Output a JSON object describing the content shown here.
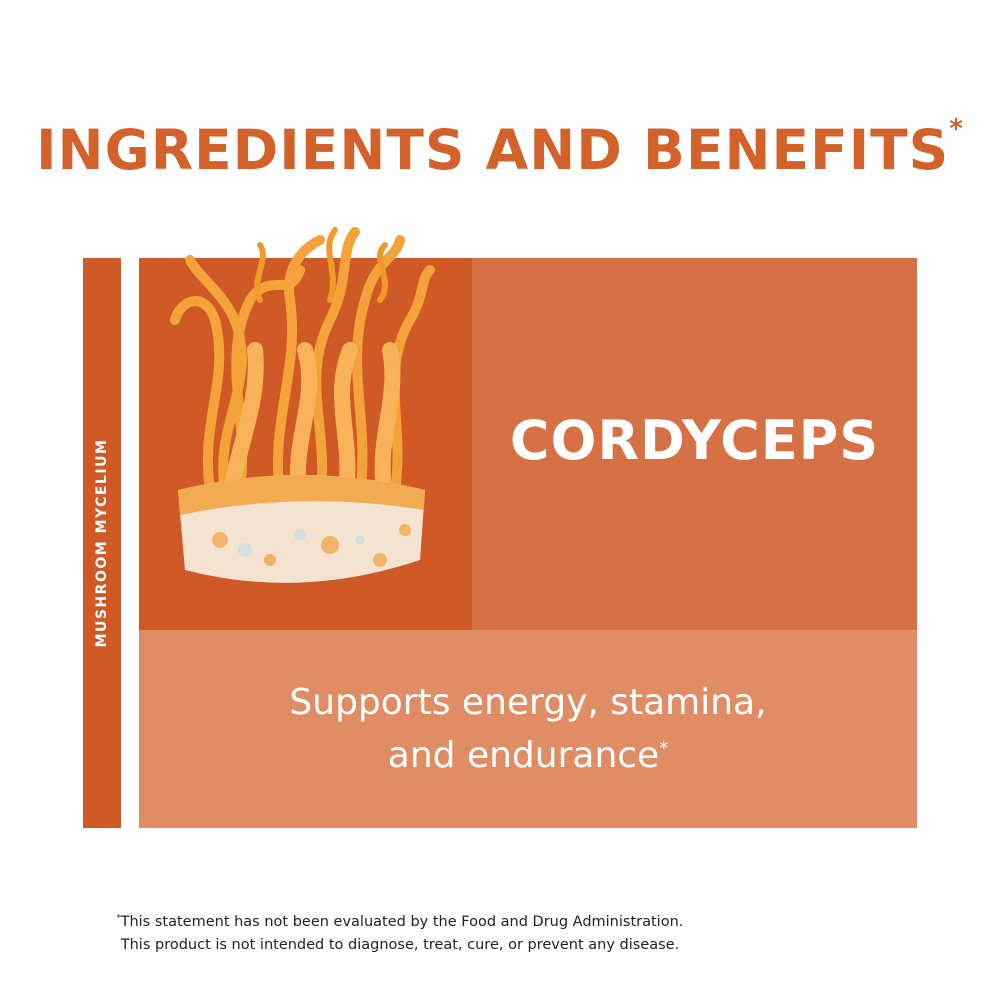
{
  "header": {
    "title": "INGREDIENTS AND BENEFITS",
    "title_mark": "*"
  },
  "category_label": "MUSHROOM MYCELIUM",
  "ingredient": {
    "name": "CORDYCEPS",
    "benefit": "Supports energy, stamina, and endurance",
    "benefit_mark": "*",
    "image_icon": "cordyceps-mushroom-image"
  },
  "footer": {
    "mark": "*",
    "line1": "This statement has not been evaluated by the Food and Drug Administration.",
    "line2": "This product is not intended to diagnose, treat, cure, or prevent any disease."
  },
  "colors": {
    "title": "#d2622a",
    "dark": "#cf5a26",
    "mid": "#d57144",
    "light": "#e08d65"
  }
}
